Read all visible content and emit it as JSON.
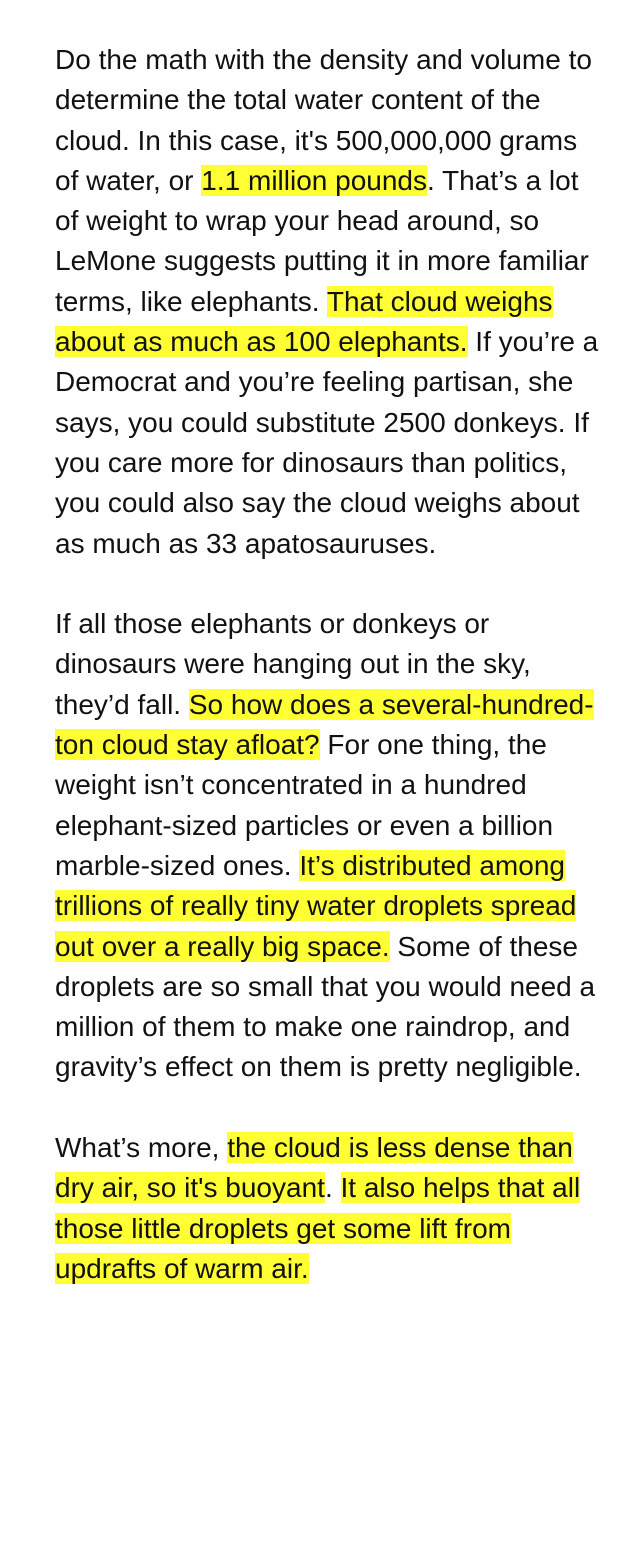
{
  "colors": {
    "background": "#ffffff",
    "text": "#111111",
    "highlight": "#ffff33"
  },
  "paragraphs": [
    {
      "runs": [
        {
          "text": "Do the math with the density and volume to determine the total water content of the cloud. In this case, it's 500,000,000 grams of water, or ",
          "highlight": false
        },
        {
          "text": "1.1 million pounds",
          "highlight": true
        },
        {
          "text": ". That’s a lot of weight to wrap your head around, so LeMone suggests putting it in more familiar terms, like elephants. ",
          "highlight": false
        },
        {
          "text": "That cloud weighs about as much as 100 elephants.",
          "highlight": true
        },
        {
          "text": " If you’re a Democrat and you’re feeling partisan, she says, you could substitute 2500 donkeys. If you care more for dinosaurs than politics, you could also say the cloud weighs about as much as 33 apatosauruses.",
          "highlight": false
        }
      ]
    },
    {
      "runs": [
        {
          "text": "If all those elephants or donkeys or dinosaurs were hanging out in the sky, they’d fall. ",
          "highlight": false
        },
        {
          "text": "So how does a several-hundred-ton cloud stay afloat?",
          "highlight": true
        },
        {
          "text": " For one thing, the weight isn’t concentrated in a hundred elephant-sized particles or even a billion marble-sized ones. ",
          "highlight": false
        },
        {
          "text": "It’s distributed among trillions of really tiny water droplets spread out over a really big space.",
          "highlight": true
        },
        {
          "text": " Some of these droplets are so small that you would need a million of them to make one raindrop, and gravity’s effect on them is pretty negligible.",
          "highlight": false
        }
      ]
    },
    {
      "runs": [
        {
          "text": "What’s more, ",
          "highlight": false
        },
        {
          "text": "the cloud is less dense than dry air, so it's buoyant",
          "highlight": true
        },
        {
          "text": ". ",
          "highlight": false
        },
        {
          "text": "It also helps that all those little droplets get some lift from updrafts of warm air.",
          "highlight": true
        }
      ]
    }
  ]
}
